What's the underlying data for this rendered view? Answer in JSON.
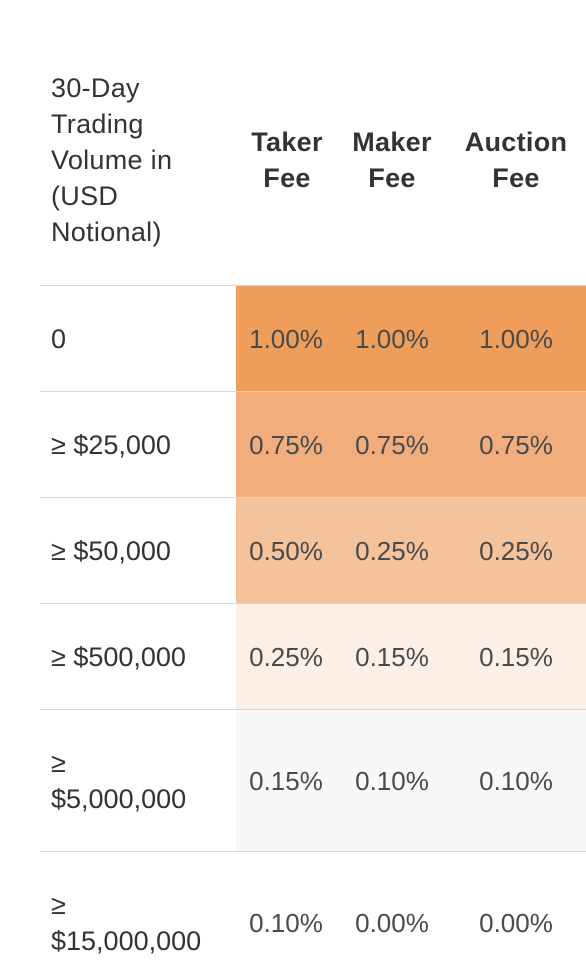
{
  "header": {
    "volume_label": "30-Day Trading Volume in (USD Notional)",
    "volume_lines": [
      "30-Day",
      "Trading",
      "Volume in",
      "(USD",
      "Notional)"
    ],
    "taker_lines": [
      "Taker",
      "Fee"
    ],
    "maker_lines": [
      "Maker",
      "Fee"
    ],
    "auction_lines": [
      "Auction",
      "Fee"
    ]
  },
  "rows": [
    {
      "volume_lines": [
        "0"
      ],
      "taker": "1.00%",
      "maker": "1.00%",
      "auction": "1.00%",
      "shade": "#ee9d5b"
    },
    {
      "volume_lines": [
        "≥ $25,000"
      ],
      "taker": "0.75%",
      "maker": "0.75%",
      "auction": "0.75%",
      "shade": "#f1ae7c"
    },
    {
      "volume_lines": [
        "≥ $50,000"
      ],
      "taker": "0.50%",
      "maker": "0.25%",
      "auction": "0.25%",
      "shade": "#f4c39b"
    },
    {
      "volume_lines": [
        "≥ $500,000"
      ],
      "taker": "0.25%",
      "maker": "0.15%",
      "auction": "0.15%",
      "shade": "#fcefe6"
    },
    {
      "volume_lines": [
        "≥",
        "$5,000,000"
      ],
      "taker": "0.15%",
      "maker": "0.10%",
      "auction": "0.10%",
      "shade": "#f8f8f8"
    },
    {
      "volume_lines": [
        "≥",
        "$15,000,000"
      ],
      "taker": "0.10%",
      "maker": "0.00%",
      "auction": "0.00%",
      "shade": "#ffffff"
    }
  ]
}
